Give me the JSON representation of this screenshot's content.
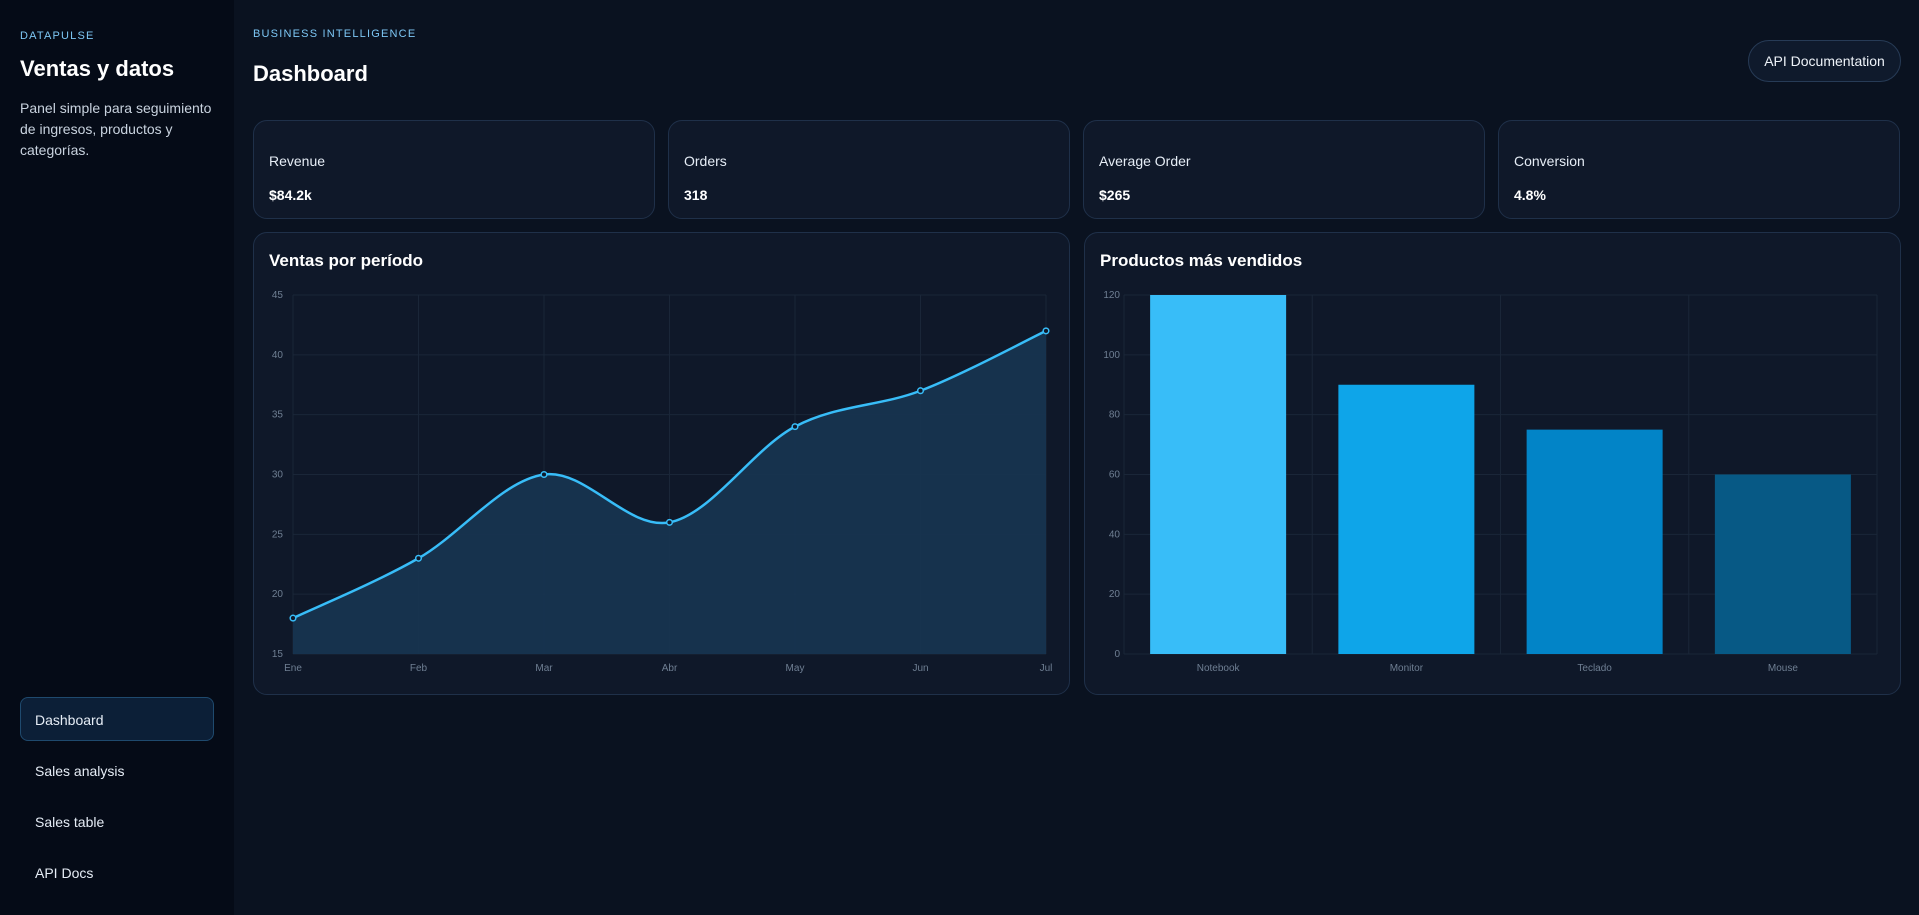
{
  "sidebar": {
    "brand": "DATAPULSE",
    "title": "Ventas y datos",
    "description": "Panel simple para seguimiento de ingresos, productos y categorías.",
    "nav": [
      {
        "label": "Dashboard",
        "active": true
      },
      {
        "label": "Sales analysis",
        "active": false
      },
      {
        "label": "Sales table",
        "active": false
      },
      {
        "label": "API Docs",
        "active": false
      }
    ]
  },
  "header": {
    "eyebrow": "BUSINESS INTELLIGENCE",
    "title": "Dashboard",
    "api_button": "API Documentation"
  },
  "kpis": [
    {
      "label": "Revenue",
      "value": "$84.2k"
    },
    {
      "label": "Orders",
      "value": "318"
    },
    {
      "label": "Average Order",
      "value": "$265"
    },
    {
      "label": "Conversion",
      "value": "4.8%"
    }
  ],
  "colors": {
    "accent": "#38bdf8",
    "bar_colors": [
      "#38bdf8",
      "#0ea5e9",
      "#0284c7",
      "#075985"
    ],
    "area_fill": "#17344f"
  },
  "chart_data": [
    {
      "type": "area",
      "title": "Ventas por período",
      "categories": [
        "Ene",
        "Feb",
        "Mar",
        "Abr",
        "May",
        "Jun",
        "Jul"
      ],
      "values": [
        18,
        23,
        30,
        26,
        34,
        37,
        42
      ],
      "ylim": [
        15,
        45
      ],
      "yticks": [
        15,
        20,
        25,
        30,
        35,
        40,
        45
      ],
      "grid": true
    },
    {
      "type": "bar",
      "title": "Productos más vendidos",
      "categories": [
        "Notebook",
        "Monitor",
        "Teclado",
        "Mouse"
      ],
      "values": [
        120,
        90,
        75,
        60
      ],
      "ylim": [
        0,
        120
      ],
      "yticks": [
        0,
        20,
        40,
        60,
        80,
        100,
        120
      ],
      "grid": true
    }
  ]
}
